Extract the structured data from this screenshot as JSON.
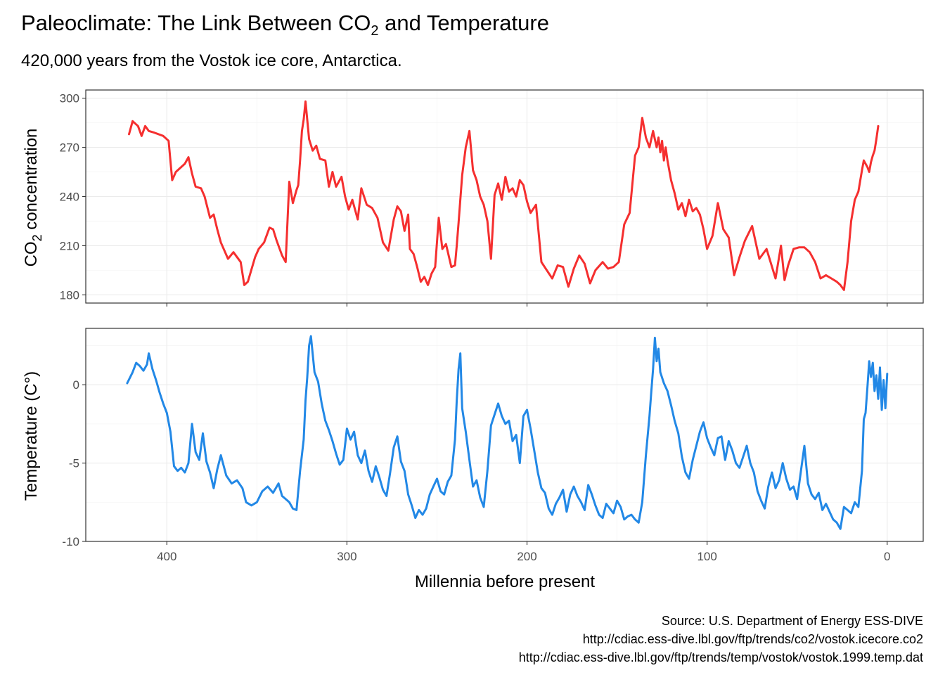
{
  "header": {
    "title_main": "Paleoclimate: The Link Between CO",
    "title_sub": "2",
    "title_tail": " and Temperature",
    "subtitle": "420,000 years from the Vostok ice core, Antarctica."
  },
  "caption": {
    "lines": [
      "Source: U.S. Department of Energy ESS-DIVE",
      "http://cdiac.ess-dive.lbl.gov/ftp/trends/co2/vostok.icecore.co2",
      "http://cdiac.ess-dive.lbl.gov/ftp/trends/temp/vostok/vostok.1999.temp.dat"
    ]
  },
  "chart_data": [
    {
      "type": "line",
      "panel": "co2",
      "ylabel_main": "CO",
      "ylabel_sub": "2",
      "ylabel_tail": " concentration",
      "xlabel": "",
      "xlim": [
        445,
        -20
      ],
      "ylim": [
        175,
        305
      ],
      "x_ticks": [
        400,
        300,
        200,
        100,
        0
      ],
      "y_ticks": [
        180,
        210,
        240,
        270,
        300
      ],
      "x_tick_labels_shown": false,
      "grid": true,
      "series": [
        {
          "color": "#f52f2f",
          "x": [
            421,
            419,
            416,
            414,
            412,
            410,
            407,
            402,
            399,
            397,
            395,
            393,
            390,
            388,
            386,
            384,
            381,
            379,
            376,
            374,
            372,
            370,
            366,
            363,
            359,
            357,
            355,
            351,
            349,
            346,
            343,
            341,
            339,
            336,
            334,
            332,
            330,
            328,
            327,
            326,
            325,
            324,
            323,
            321,
            319,
            317,
            315,
            312,
            310,
            308,
            306,
            303,
            301,
            299,
            297,
            294,
            292,
            289,
            286,
            283,
            280,
            277,
            274,
            272,
            270,
            268,
            266,
            265,
            263,
            261,
            259,
            257,
            255,
            253,
            251,
            249,
            247,
            245,
            242,
            240,
            239,
            238,
            236,
            234,
            232,
            230,
            228,
            226,
            224,
            222,
            220,
            218,
            216,
            214,
            212,
            210,
            208,
            206,
            204,
            202,
            200,
            198,
            195,
            192,
            189,
            186,
            183,
            180,
            177,
            174,
            171,
            168,
            165,
            162,
            158,
            155,
            152,
            149,
            146,
            143,
            140,
            138,
            136,
            134,
            132,
            130,
            128,
            127,
            126,
            125,
            124,
            123,
            122,
            120,
            118,
            116,
            114,
            112,
            110,
            108,
            106,
            104,
            102,
            100,
            97,
            94,
            91,
            88,
            85,
            82,
            79,
            75,
            71,
            67,
            62,
            59,
            57,
            55,
            52,
            49,
            46,
            43,
            40,
            37,
            34,
            31,
            28,
            26,
            24,
            22,
            20,
            18,
            16,
            14,
            13,
            12,
            11,
            10,
            9,
            8,
            7,
            6,
            5
          ],
          "y": [
            278,
            286,
            283,
            277,
            283,
            280,
            279,
            277,
            274,
            250,
            255,
            257,
            260,
            264,
            254,
            246,
            245,
            240,
            227,
            229,
            220,
            212,
            202,
            206,
            200,
            186,
            188,
            203,
            208,
            212,
            221,
            220,
            213,
            204,
            200,
            249,
            236,
            244,
            247,
            262,
            280,
            287,
            298,
            275,
            268,
            271,
            263,
            262,
            246,
            255,
            246,
            252,
            240,
            232,
            238,
            226,
            245,
            235,
            233,
            227,
            212,
            207,
            226,
            234,
            231,
            219,
            229,
            208,
            205,
            197,
            188,
            191,
            186,
            193,
            197,
            227,
            208,
            211,
            197,
            198,
            210,
            224,
            253,
            270,
            280,
            256,
            250,
            240,
            235,
            225,
            202,
            241,
            248,
            238,
            252,
            243,
            245,
            240,
            250,
            247,
            237,
            230,
            235,
            200,
            195,
            190,
            198,
            197,
            185,
            196,
            204,
            199,
            187,
            195,
            200,
            196,
            197,
            200,
            223,
            230,
            265,
            270,
            288,
            276,
            270,
            280,
            270,
            276,
            267,
            274,
            262,
            270,
            262,
            250,
            242,
            232,
            236,
            228,
            238,
            231,
            233,
            229,
            220,
            208,
            216,
            236,
            220,
            215,
            192,
            203,
            213,
            222,
            202,
            208,
            190,
            210,
            189,
            198,
            208,
            209,
            209,
            206,
            200,
            190,
            192,
            190,
            188,
            186,
            183,
            200,
            225,
            238,
            243,
            256,
            262,
            260,
            258,
            255,
            261,
            265,
            268,
            275,
            283
          ]
        }
      ]
    },
    {
      "type": "line",
      "panel": "temperature",
      "ylabel": "Temperature (C°)",
      "xlabel": "Millennia before present",
      "xlim": [
        445,
        -20
      ],
      "ylim": [
        -10,
        3.6
      ],
      "x_ticks": [
        400,
        300,
        200,
        100,
        0
      ],
      "x_tick_labels": [
        "400",
        "300",
        "200",
        "100",
        "0"
      ],
      "y_ticks": [
        -10,
        -5,
        0
      ],
      "y_tick_labels": [
        "-10",
        "-5",
        "0"
      ],
      "grid": true,
      "series": [
        {
          "color": "#2288e6",
          "x": [
            422,
            419,
            417,
            415,
            413,
            411,
            410,
            408,
            406,
            404,
            402,
            400,
            398,
            396,
            394,
            392,
            390,
            388,
            386,
            384,
            382,
            380,
            378,
            376,
            374,
            372,
            370,
            367,
            364,
            361,
            358,
            356,
            353,
            350,
            347,
            344,
            341,
            338,
            336,
            334,
            332,
            330,
            328,
            326,
            324,
            323,
            322,
            321,
            320,
            318,
            316,
            314,
            312,
            310,
            308,
            306,
            304,
            302,
            300,
            298,
            296,
            294,
            292,
            290,
            288,
            286,
            284,
            282,
            280,
            278,
            276,
            274,
            272,
            270,
            268,
            266,
            264,
            262,
            260,
            258,
            256,
            254,
            252,
            250,
            248,
            246,
            244,
            242,
            240,
            239,
            238,
            237,
            236,
            234,
            232,
            230,
            228,
            226,
            224,
            222,
            220,
            218,
            216,
            214,
            212,
            210,
            208,
            206,
            204,
            202,
            200,
            198,
            196,
            194,
            192,
            190,
            188,
            186,
            184,
            182,
            180,
            178,
            176,
            174,
            172,
            170,
            168,
            166,
            164,
            162,
            160,
            158,
            156,
            154,
            152,
            150,
            148,
            146,
            144,
            142,
            140,
            138,
            136,
            134,
            132,
            131,
            130,
            129,
            128,
            127,
            126,
            124,
            122,
            120,
            118,
            116,
            114,
            112,
            110,
            108,
            106,
            104,
            102,
            100,
            98,
            96,
            94,
            92,
            90,
            88,
            86,
            84,
            82,
            80,
            78,
            76,
            74,
            72,
            70,
            68,
            66,
            64,
            62,
            60,
            58,
            56,
            54,
            52,
            50,
            48,
            46,
            44,
            42,
            40,
            38,
            36,
            34,
            32,
            30,
            28,
            26,
            24,
            22,
            20,
            18,
            16,
            14,
            13,
            12,
            11,
            10,
            9,
            8,
            7,
            6,
            5,
            4,
            3,
            2,
            1,
            0
          ],
          "y": [
            0.1,
            0.8,
            1.4,
            1.2,
            0.9,
            1.3,
            2.0,
            1.0,
            0.3,
            -0.5,
            -1.2,
            -1.8,
            -3.0,
            -5.2,
            -5.5,
            -5.3,
            -5.6,
            -5.0,
            -2.5,
            -4.3,
            -4.8,
            -3.1,
            -4.9,
            -5.6,
            -6.6,
            -5.4,
            -4.5,
            -5.8,
            -6.3,
            -6.1,
            -6.6,
            -7.5,
            -7.7,
            -7.5,
            -6.8,
            -6.5,
            -6.9,
            -6.3,
            -7.1,
            -7.3,
            -7.5,
            -7.9,
            -8.0,
            -5.5,
            -3.5,
            -1.0,
            0.5,
            2.5,
            3.1,
            0.8,
            0.2,
            -1.2,
            -2.3,
            -2.9,
            -3.6,
            -4.4,
            -5.1,
            -4.8,
            -2.8,
            -3.5,
            -3.0,
            -4.5,
            -5.0,
            -4.2,
            -5.5,
            -6.2,
            -5.2,
            -5.9,
            -6.7,
            -7.1,
            -5.6,
            -4.0,
            -3.3,
            -4.9,
            -5.5,
            -7.0,
            -7.7,
            -8.5,
            -8.0,
            -8.3,
            -7.9,
            -7.0,
            -6.5,
            -6.0,
            -6.8,
            -7.0,
            -6.2,
            -5.8,
            -3.5,
            -1.0,
            1.0,
            2.0,
            -1.5,
            -3.0,
            -4.8,
            -6.5,
            -6.1,
            -7.2,
            -7.8,
            -5.5,
            -2.6,
            -1.9,
            -1.2,
            -2.0,
            -2.5,
            -2.3,
            -3.6,
            -3.2,
            -5.0,
            -2.0,
            -1.6,
            -2.8,
            -4.2,
            -5.6,
            -6.6,
            -6.9,
            -7.9,
            -8.3,
            -7.6,
            -7.2,
            -6.7,
            -8.1,
            -7.0,
            -6.5,
            -7.1,
            -7.5,
            -8.0,
            -6.4,
            -7.0,
            -7.7,
            -8.3,
            -8.5,
            -7.6,
            -7.9,
            -8.2,
            -7.4,
            -7.8,
            -8.6,
            -8.4,
            -8.3,
            -8.6,
            -8.8,
            -7.5,
            -4.5,
            -2.0,
            -0.5,
            1.0,
            3.0,
            1.5,
            2.3,
            0.8,
            0.1,
            -0.4,
            -1.3,
            -2.3,
            -3.1,
            -4.6,
            -5.6,
            -6.0,
            -4.8,
            -3.9,
            -3.0,
            -2.4,
            -3.4,
            -4.0,
            -4.5,
            -3.4,
            -3.3,
            -4.8,
            -3.6,
            -4.2,
            -5.0,
            -5.3,
            -4.6,
            -3.9,
            -5.0,
            -5.6,
            -6.8,
            -7.4,
            -7.9,
            -6.5,
            -5.6,
            -6.6,
            -6.1,
            -5.0,
            -6.0,
            -6.7,
            -6.5,
            -7.3,
            -5.6,
            -3.9,
            -6.3,
            -7.0,
            -7.3,
            -6.9,
            -8.0,
            -7.6,
            -8.1,
            -8.6,
            -8.8,
            -9.2,
            -7.8,
            -8.0,
            -8.2,
            -7.5,
            -7.8,
            -5.5,
            -2.2,
            -1.8,
            -0.2,
            1.5,
            0.5,
            1.4,
            -0.4,
            0.6,
            -0.9,
            1.1,
            -1.6,
            0.3,
            -1.5,
            0.7
          ]
        }
      ]
    }
  ]
}
